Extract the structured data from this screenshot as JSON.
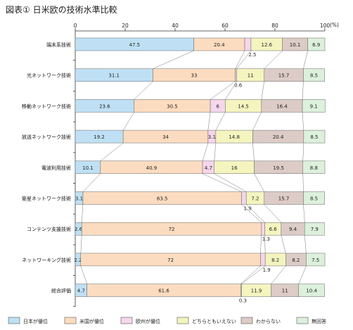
{
  "chart_data": {
    "type": "bar",
    "stacked": true,
    "orientation": "horizontal",
    "title": "図表① 日米欧の技術水準比較",
    "unit": "(%)",
    "xlim": [
      0,
      100
    ],
    "xticks": [
      "0",
      "20",
      "40",
      "60",
      "80",
      "100"
    ],
    "grid": false,
    "legend_position": "bottom",
    "categories": [
      "端末系技術",
      "光ネットワーク技術",
      "移動ネットワーク技術",
      "放送ネットワーク技術",
      "電波利用技術",
      "衛星ネットワーク技術",
      "コンテンツ支援技術",
      "ネットワーキング技術",
      "総合評価"
    ],
    "series": [
      {
        "name": "日本が優位",
        "color": "#bfe0f4",
        "values": [
          47.5,
          31.1,
          23.6,
          19.2,
          10.1,
          3.1,
          2.6,
          2.2,
          4.7
        ],
        "labels": [
          "47.5",
          "31.1",
          "23.6",
          "19.2",
          "10.1",
          "3.1",
          "2.6",
          "2.2",
          "4.7"
        ]
      },
      {
        "name": "米国が優位",
        "color": "#fcdcc0",
        "values": [
          20.4,
          33,
          30.5,
          34,
          40.9,
          63.5,
          72,
          72,
          61.6
        ],
        "labels": [
          "20.4",
          "33",
          "30.5",
          "34",
          "40.9",
          "63.5",
          "72",
          "72",
          "61.6"
        ]
      },
      {
        "name": "欧州が優位",
        "color": "#f5d6ea",
        "values": [
          2.5,
          0.6,
          6,
          3.1,
          4.7,
          1.9,
          1.3,
          1.9,
          0.3
        ],
        "labels": [
          "2.5",
          "0.6",
          "6",
          "3.1",
          "4.7",
          "1.9",
          "1.3",
          "1.9",
          "0.3"
        ]
      },
      {
        "name": "どちらともいえない",
        "color": "#f4f4bf",
        "values": [
          12.6,
          11,
          14.5,
          14.8,
          16,
          7.2,
          6.6,
          8.2,
          11.9
        ],
        "labels": [
          "12.6",
          "11",
          "14.5",
          "14.8",
          "16",
          "7.2",
          "6.6",
          "8.2",
          "11.9"
        ]
      },
      {
        "name": "わからない",
        "color": "#dccbc6",
        "values": [
          10.1,
          15.7,
          16.4,
          20.4,
          19.5,
          15.7,
          9.4,
          8.2,
          11
        ],
        "labels": [
          "10.1",
          "15.7",
          "16.4",
          "20.4",
          "19.5",
          "15.7",
          "9.4",
          "8.2",
          "11"
        ]
      },
      {
        "name": "無回答",
        "color": "#dcf0dc",
        "values": [
          6.9,
          8.5,
          9.1,
          8.5,
          8.8,
          8.5,
          7.9,
          7.5,
          10.4
        ],
        "labels": [
          "6.9",
          "8.5",
          "9.1",
          "8.5",
          "8.8",
          "8.5",
          "7.9",
          "7.5",
          "10.4"
        ]
      }
    ]
  }
}
